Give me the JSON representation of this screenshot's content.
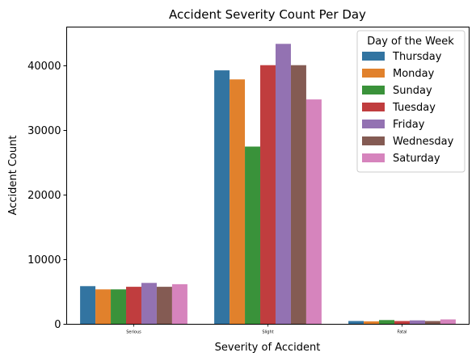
{
  "chart_data": {
    "type": "bar",
    "title": "Accident Severity Count Per Day",
    "xlabel": "Severity of Accident",
    "ylabel": "Accident Count",
    "categories": [
      "Serious",
      "Slight",
      "Fatal"
    ],
    "ylim": [
      0,
      46000
    ],
    "yticks": [
      0,
      10000,
      20000,
      30000,
      40000
    ],
    "legend": {
      "title": "Day of the Week",
      "position": "top-right"
    },
    "series": [
      {
        "name": "Thursday",
        "color": "#3274a1",
        "values": [
          5900,
          39300,
          500
        ]
      },
      {
        "name": "Monday",
        "color": "#e1812c",
        "values": [
          5400,
          37900,
          450
        ]
      },
      {
        "name": "Sunday",
        "color": "#3a923a",
        "values": [
          5400,
          27500,
          650
        ]
      },
      {
        "name": "Tuesday",
        "color": "#c03d3e",
        "values": [
          5800,
          40100,
          500
        ]
      },
      {
        "name": "Friday",
        "color": "#9372b2",
        "values": [
          6400,
          43400,
          600
        ]
      },
      {
        "name": "Wednesday",
        "color": "#845b53",
        "values": [
          5800,
          40100,
          500
        ]
      },
      {
        "name": "Saturday",
        "color": "#d684bd",
        "values": [
          6200,
          34800,
          750
        ]
      }
    ]
  }
}
